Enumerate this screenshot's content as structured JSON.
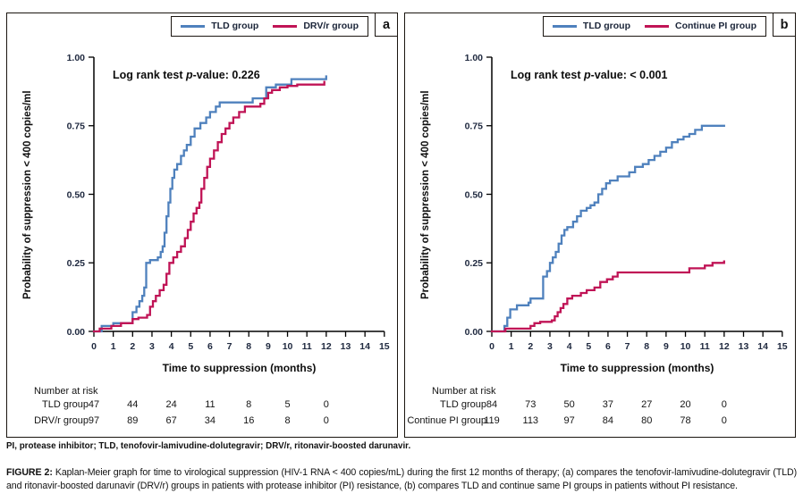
{
  "figure": {
    "footnote": "PI, protease inhibitor; TLD, tenofovir-lamivudine-dolutegravir; DRV/r, ritonavir-boosted darunavir.",
    "caption_label": "FIGURE 2:",
    "caption_text": " Kaplan-Meier graph for time to virological suppression (HIV-1 RNA < 400 copies/mL) during the first 12 months of therapy; (a) compares the tenofovir-lamivudine-dolutegravir (TLD) and ritonavir-boosted darunavir (DRV/r) groups in patients with protease inhibitor (PI) resistance, (b) compares TLD and continue same PI groups in patients without PI resistance."
  },
  "colors": {
    "tld_blue": "#4f81bd",
    "comparator_crimson": "#c01456",
    "axis": "#000000",
    "tick_label": "#202a40"
  },
  "chart_data": [
    {
      "type": "line",
      "subtype": "kaplan-meier-step",
      "panel_label": "a",
      "annotation": {
        "pre": "Log rank test ",
        "p": "p",
        "post": "-value: 0.226"
      },
      "xlabel": "Time to suppression (months)",
      "ylabel": "Probability of suppression < 400 copies/ml",
      "xlim": [
        0,
        15
      ],
      "ylim": [
        0,
        1
      ],
      "grid": false,
      "legend_position": "top-right",
      "xticks": [
        0,
        1,
        2,
        3,
        4,
        5,
        6,
        7,
        8,
        9,
        10,
        11,
        12,
        13,
        14,
        15
      ],
      "ytick_values": [
        0,
        0.25,
        0.5,
        0.75,
        1
      ],
      "ytick_labels": [
        "0.00",
        "0.25",
        "0.50",
        "0.75",
        "1.00"
      ],
      "series": [
        {
          "name": "TLD group",
          "color": "#4f81bd",
          "points": [
            [
              0,
              0
            ],
            [
              0.4,
              0.02
            ],
            [
              1.0,
              0.03
            ],
            [
              2.0,
              0.07
            ],
            [
              2.2,
              0.09
            ],
            [
              2.35,
              0.11
            ],
            [
              2.5,
              0.13
            ],
            [
              2.6,
              0.16
            ],
            [
              2.7,
              0.25
            ],
            [
              2.9,
              0.26
            ],
            [
              3.3,
              0.27
            ],
            [
              3.45,
              0.29
            ],
            [
              3.55,
              0.31
            ],
            [
              3.65,
              0.36
            ],
            [
              3.75,
              0.42
            ],
            [
              3.85,
              0.47
            ],
            [
              3.95,
              0.52
            ],
            [
              4.05,
              0.56
            ],
            [
              4.15,
              0.59
            ],
            [
              4.3,
              0.61
            ],
            [
              4.5,
              0.64
            ],
            [
              4.65,
              0.66
            ],
            [
              4.8,
              0.68
            ],
            [
              5.0,
              0.71
            ],
            [
              5.2,
              0.74
            ],
            [
              5.5,
              0.76
            ],
            [
              5.8,
              0.78
            ],
            [
              6.0,
              0.8
            ],
            [
              6.3,
              0.82
            ],
            [
              6.5,
              0.835
            ],
            [
              8.2,
              0.85
            ],
            [
              8.9,
              0.89
            ],
            [
              9.4,
              0.9
            ],
            [
              10.2,
              0.92
            ],
            [
              12.0,
              0.93
            ]
          ]
        },
        {
          "name": "DRV/r group",
          "color": "#c01456",
          "points": [
            [
              0,
              0
            ],
            [
              0.3,
              0.01
            ],
            [
              0.9,
              0.02
            ],
            [
              1.4,
              0.03
            ],
            [
              2.0,
              0.045
            ],
            [
              2.3,
              0.05
            ],
            [
              2.75,
              0.06
            ],
            [
              2.9,
              0.09
            ],
            [
              3.05,
              0.11
            ],
            [
              3.2,
              0.13
            ],
            [
              3.4,
              0.15
            ],
            [
              3.6,
              0.17
            ],
            [
              3.75,
              0.21
            ],
            [
              3.9,
              0.25
            ],
            [
              4.1,
              0.27
            ],
            [
              4.3,
              0.29
            ],
            [
              4.5,
              0.31
            ],
            [
              4.7,
              0.34
            ],
            [
              4.85,
              0.37
            ],
            [
              5.0,
              0.4
            ],
            [
              5.15,
              0.43
            ],
            [
              5.3,
              0.45
            ],
            [
              5.45,
              0.47
            ],
            [
              5.55,
              0.52
            ],
            [
              5.7,
              0.56
            ],
            [
              5.85,
              0.6
            ],
            [
              6.0,
              0.63
            ],
            [
              6.2,
              0.66
            ],
            [
              6.4,
              0.69
            ],
            [
              6.6,
              0.72
            ],
            [
              6.8,
              0.74
            ],
            [
              7.0,
              0.76
            ],
            [
              7.2,
              0.78
            ],
            [
              7.5,
              0.8
            ],
            [
              7.8,
              0.82
            ],
            [
              8.6,
              0.83
            ],
            [
              8.8,
              0.85
            ],
            [
              9.0,
              0.87
            ],
            [
              9.2,
              0.88
            ],
            [
              9.6,
              0.89
            ],
            [
              10.0,
              0.895
            ],
            [
              10.5,
              0.9
            ],
            [
              11.9,
              0.91
            ]
          ]
        }
      ],
      "number_at_risk": {
        "title": "Number at risk",
        "times": [
          0,
          2,
          4,
          6,
          8,
          10,
          12
        ],
        "rows": [
          {
            "label": "TLD group",
            "values": [
              47,
              44,
              24,
              11,
              8,
              5,
              0
            ]
          },
          {
            "label": "DRV/r group",
            "values": [
              97,
              89,
              67,
              34,
              16,
              8,
              0
            ]
          }
        ]
      }
    },
    {
      "type": "line",
      "subtype": "kaplan-meier-step",
      "panel_label": "b",
      "annotation": {
        "pre": "Log rank test ",
        "p": "p",
        "post": "-value: < 0.001"
      },
      "xlabel": "Time to suppression (months)",
      "ylabel": "Probability of suppression < 400 copies/ml",
      "xlim": [
        0,
        15
      ],
      "ylim": [
        0,
        1
      ],
      "grid": false,
      "legend_position": "top-right",
      "xticks": [
        0,
        1,
        2,
        3,
        4,
        5,
        6,
        7,
        8,
        9,
        10,
        11,
        12,
        13,
        14,
        15
      ],
      "ytick_values": [
        0,
        0.25,
        0.5,
        0.75,
        1
      ],
      "ytick_labels": [
        "0.00",
        "0.25",
        "0.50",
        "0.75",
        "1.00"
      ],
      "series": [
        {
          "name": "TLD group",
          "color": "#4f81bd",
          "points": [
            [
              0,
              0
            ],
            [
              0.65,
              0.02
            ],
            [
              0.8,
              0.05
            ],
            [
              0.95,
              0.08
            ],
            [
              1.3,
              0.095
            ],
            [
              1.9,
              0.105
            ],
            [
              2.0,
              0.12
            ],
            [
              2.65,
              0.2
            ],
            [
              2.85,
              0.22
            ],
            [
              3.0,
              0.25
            ],
            [
              3.15,
              0.27
            ],
            [
              3.3,
              0.29
            ],
            [
              3.45,
              0.32
            ],
            [
              3.6,
              0.35
            ],
            [
              3.75,
              0.37
            ],
            [
              3.9,
              0.38
            ],
            [
              4.2,
              0.4
            ],
            [
              4.4,
              0.42
            ],
            [
              4.6,
              0.44
            ],
            [
              4.9,
              0.45
            ],
            [
              5.1,
              0.46
            ],
            [
              5.3,
              0.47
            ],
            [
              5.5,
              0.5
            ],
            [
              5.7,
              0.52
            ],
            [
              5.9,
              0.54
            ],
            [
              6.1,
              0.55
            ],
            [
              6.5,
              0.565
            ],
            [
              7.1,
              0.58
            ],
            [
              7.4,
              0.6
            ],
            [
              7.8,
              0.61
            ],
            [
              8.1,
              0.625
            ],
            [
              8.4,
              0.64
            ],
            [
              8.7,
              0.655
            ],
            [
              9.0,
              0.67
            ],
            [
              9.3,
              0.69
            ],
            [
              9.6,
              0.7
            ],
            [
              9.9,
              0.71
            ],
            [
              10.2,
              0.72
            ],
            [
              10.5,
              0.735
            ],
            [
              10.85,
              0.75
            ],
            [
              12.0,
              0.75
            ]
          ]
        },
        {
          "name": "Continue PI group",
          "color": "#c01456",
          "points": [
            [
              0,
              0
            ],
            [
              0.7,
              0.01
            ],
            [
              2.0,
              0.02
            ],
            [
              2.2,
              0.03
            ],
            [
              2.5,
              0.035
            ],
            [
              3.1,
              0.04
            ],
            [
              3.25,
              0.055
            ],
            [
              3.4,
              0.07
            ],
            [
              3.55,
              0.085
            ],
            [
              3.7,
              0.1
            ],
            [
              3.9,
              0.12
            ],
            [
              4.15,
              0.13
            ],
            [
              4.6,
              0.14
            ],
            [
              4.9,
              0.15
            ],
            [
              5.3,
              0.16
            ],
            [
              5.6,
              0.18
            ],
            [
              5.95,
              0.19
            ],
            [
              6.25,
              0.2
            ],
            [
              6.5,
              0.215
            ],
            [
              10.2,
              0.23
            ],
            [
              11.0,
              0.24
            ],
            [
              11.4,
              0.25
            ],
            [
              12.0,
              0.255
            ]
          ]
        }
      ],
      "number_at_risk": {
        "title": "Number at risk",
        "times": [
          0,
          2,
          4,
          6,
          8,
          10,
          12
        ],
        "rows": [
          {
            "label": "TLD group",
            "values": [
              84,
              73,
              50,
              37,
              27,
              20,
              0
            ]
          },
          {
            "label": "Continue PI group",
            "values": [
              119,
              113,
              97,
              84,
              80,
              78,
              0
            ]
          }
        ]
      }
    }
  ]
}
